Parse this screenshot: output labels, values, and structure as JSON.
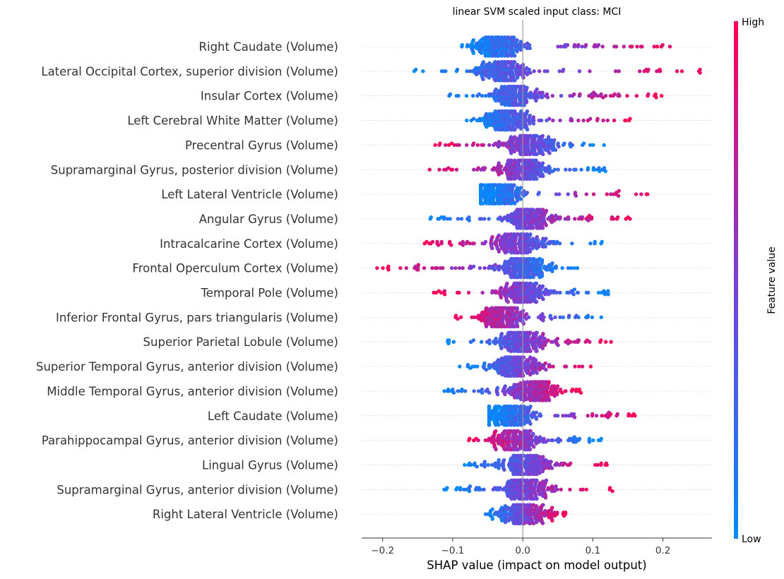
{
  "chart_data": {
    "type": "scatter",
    "title": "linear SVM scaled input class: MCI",
    "xlabel": "SHAP value (impact on model output)",
    "xlim": [
      -0.23,
      0.27
    ],
    "xticks": [
      -0.2,
      -0.1,
      0.0,
      0.1,
      0.2
    ],
    "xtick_labels": [
      "−0.2",
      "−0.1",
      "0.0",
      "0.1",
      "0.2"
    ],
    "colorbar": {
      "label": "Feature value",
      "high": "High",
      "low": "Low",
      "high_color": "#ff0052",
      "mid_color": "#7a3fd6",
      "low_color": "#008bfb"
    },
    "features": [
      {
        "name": "Right Caudate (Volume)",
        "min": -0.087,
        "max": 0.21,
        "low_side": "negative",
        "density_peak": -0.035
      },
      {
        "name": "Lateral Occipital Cortex, superior division (Volume)",
        "min": -0.155,
        "max": 0.253,
        "low_side": "negative",
        "density_peak": -0.03
      },
      {
        "name": "Insular Cortex (Volume)",
        "min": -0.105,
        "max": 0.198,
        "low_side": "negative",
        "density_peak": -0.01
      },
      {
        "name": "Left Cerebral White Matter (Volume)",
        "min": -0.08,
        "max": 0.153,
        "low_side": "negative",
        "density_peak": -0.02
      },
      {
        "name": "Precentral Gyrus (Volume)",
        "min": -0.125,
        "max": 0.116,
        "low_side": "positive",
        "density_peak": 0.01
      },
      {
        "name": "Supramarginal Gyrus, posterior division (Volume)",
        "min": -0.133,
        "max": 0.118,
        "low_side": "positive",
        "density_peak": 0.0
      },
      {
        "name": "Left Lateral Ventricle (Volume)",
        "min": -0.06,
        "max": 0.178,
        "low_side": "negative",
        "density_peak": -0.035
      },
      {
        "name": "Angular Gyrus (Volume)",
        "min": -0.132,
        "max": 0.153,
        "low_side": "negative",
        "density_peak": 0.01
      },
      {
        "name": "Intracalcarine Cortex (Volume)",
        "min": -0.14,
        "max": 0.113,
        "low_side": "positive",
        "density_peak": -0.005
      },
      {
        "name": "Frontal Operculum Cortex (Volume)",
        "min": -0.208,
        "max": 0.078,
        "low_side": "positive",
        "density_peak": 0.0
      },
      {
        "name": "Temporal Pole (Volume)",
        "min": -0.127,
        "max": 0.122,
        "low_side": "positive",
        "density_peak": 0.0
      },
      {
        "name": "Inferior Frontal Gyrus, pars triangularis (Volume)",
        "min": -0.096,
        "max": 0.112,
        "low_side": "positive",
        "density_peak": -0.03
      },
      {
        "name": "Superior Parietal Lobule (Volume)",
        "min": -0.107,
        "max": 0.126,
        "low_side": "negative",
        "density_peak": 0.0
      },
      {
        "name": "Superior Temporal Gyrus, anterior division (Volume)",
        "min": -0.09,
        "max": 0.097,
        "low_side": "negative",
        "density_peak": -0.01
      },
      {
        "name": "Middle Temporal Gyrus, anterior division (Volume)",
        "min": -0.112,
        "max": 0.083,
        "low_side": "negative",
        "density_peak": 0.015
      },
      {
        "name": "Left Caudate (Volume)",
        "min": -0.048,
        "max": 0.16,
        "low_side": "negative",
        "density_peak": -0.02
      },
      {
        "name": "Parahippocampal Gyrus, anterior division (Volume)",
        "min": -0.077,
        "max": 0.112,
        "low_side": "positive",
        "density_peak": -0.01
      },
      {
        "name": "Lingual Gyrus (Volume)",
        "min": -0.083,
        "max": 0.12,
        "low_side": "negative",
        "density_peak": 0.005
      },
      {
        "name": "Supramarginal Gyrus, anterior division (Volume)",
        "min": -0.112,
        "max": 0.128,
        "low_side": "negative",
        "density_peak": 0.005
      },
      {
        "name": "Right Lateral Ventricle (Volume)",
        "min": -0.053,
        "max": 0.061,
        "low_side": "negative",
        "density_peak": 0.0
      }
    ]
  }
}
